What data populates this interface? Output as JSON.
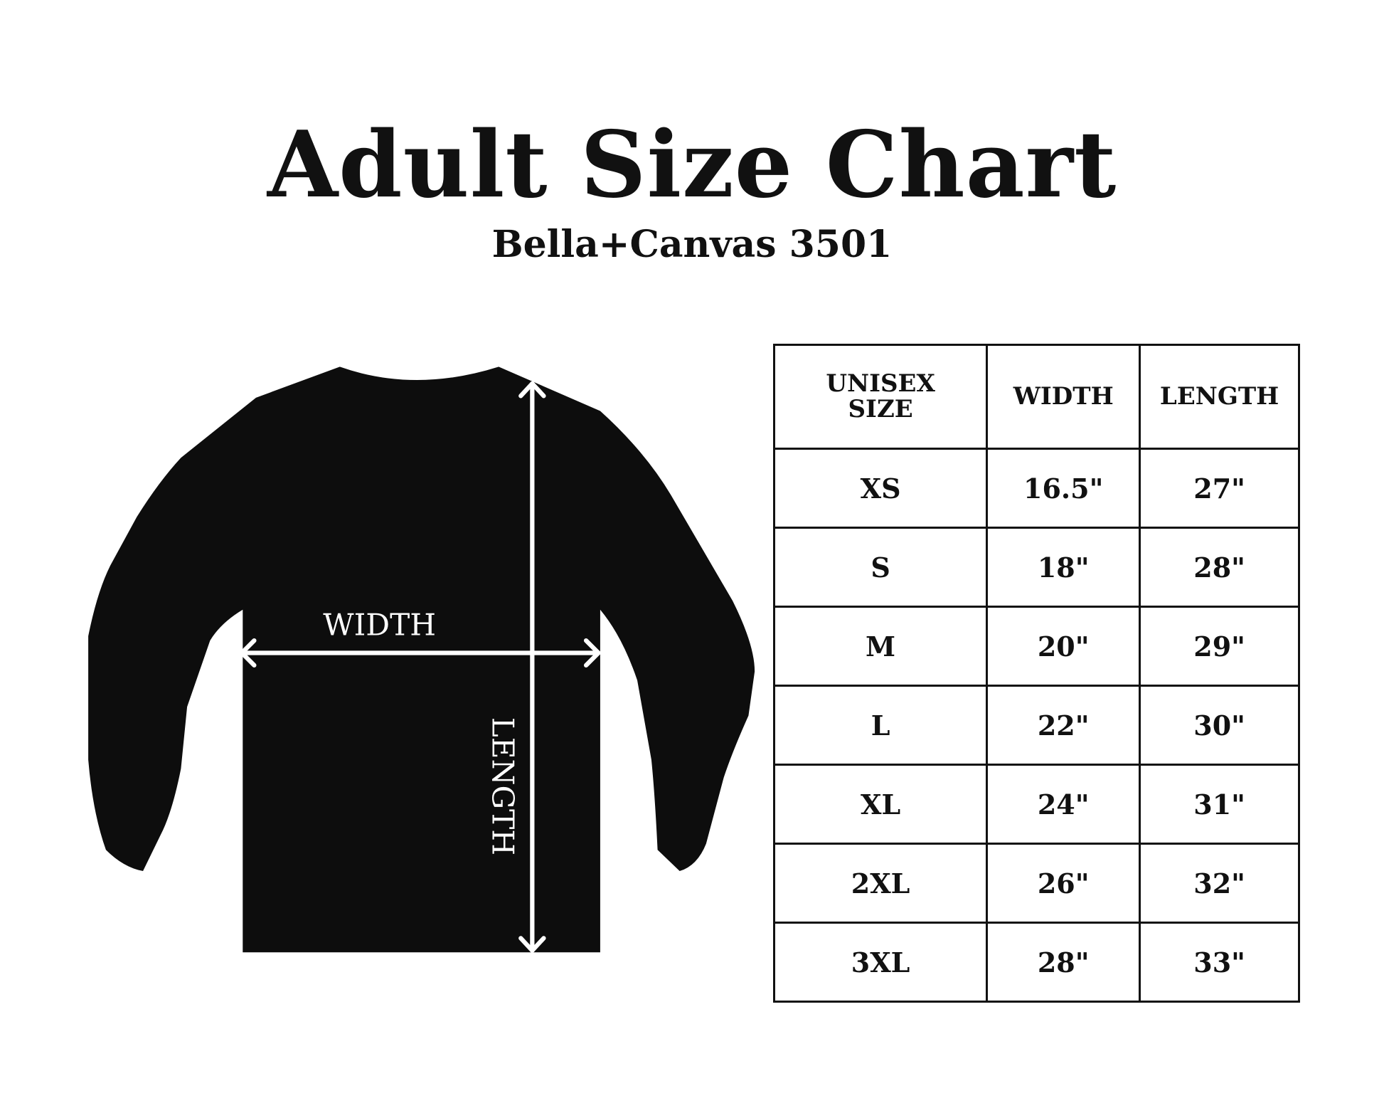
{
  "title": "Adult Size Chart",
  "subtitle": "Bella+Canvas 3501",
  "diagram": {
    "width_label": "WIDTH",
    "length_label": "LENGTH",
    "shirt_color": "#0d0d0d",
    "arrow_color": "#ffffff"
  },
  "table": {
    "headers": [
      "UNISEX SIZE",
      "WIDTH",
      "LENGTH"
    ],
    "rows": [
      [
        "XS",
        "16.5\"",
        "27\""
      ],
      [
        "S",
        "18\"",
        "28\""
      ],
      [
        "M",
        "20\"",
        "29\""
      ],
      [
        "L",
        "22\"",
        "30\""
      ],
      [
        "XL",
        "24\"",
        "31\""
      ],
      [
        "2XL",
        "26\"",
        "32\""
      ],
      [
        "3XL",
        "28\"",
        "33\""
      ]
    ]
  }
}
